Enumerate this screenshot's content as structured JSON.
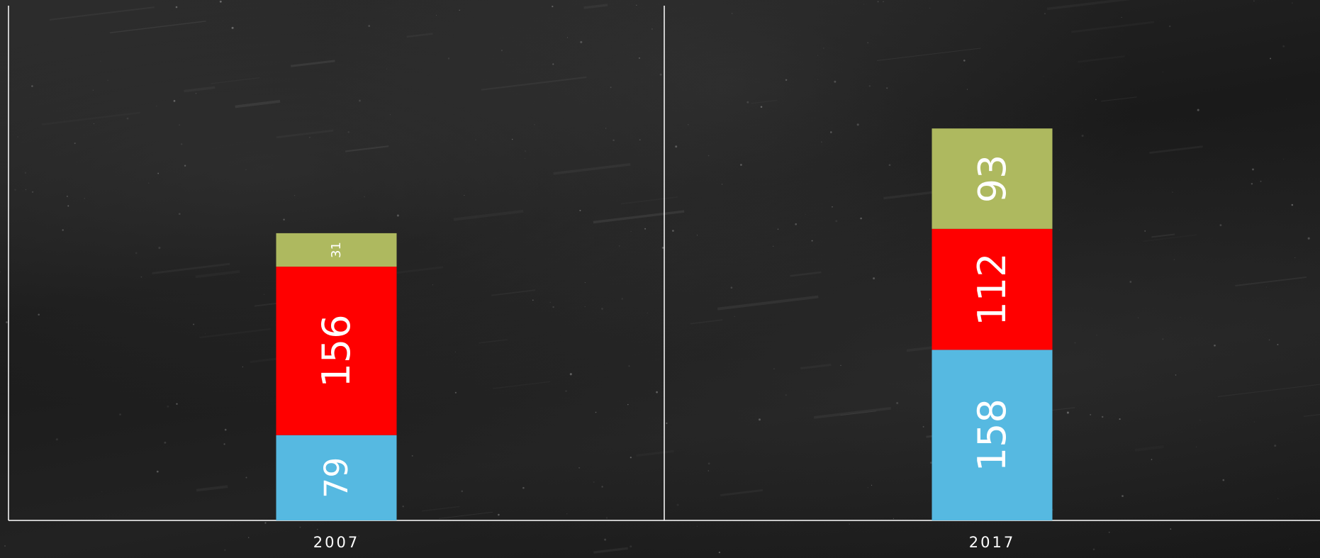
{
  "chart_data": {
    "type": "bar",
    "stacked": true,
    "orientation": "vertical",
    "categories": [
      "2007",
      "2017"
    ],
    "series": [
      {
        "values": [
          79,
          158
        ],
        "color": "#56b9e1"
      },
      {
        "values": [
          156,
          112
        ],
        "color": "#ff0000"
      },
      {
        "values": [
          31,
          93
        ],
        "color": "#aeb95f"
      }
    ],
    "title": "",
    "xlabel": "",
    "ylabel": "",
    "ylim": [
      0,
      363
    ],
    "grid": false,
    "legend": "none",
    "data_labels": true,
    "data_label_orientation": "rotated-90",
    "axis_color": "#ffffff",
    "label_color": "#ffffff"
  }
}
